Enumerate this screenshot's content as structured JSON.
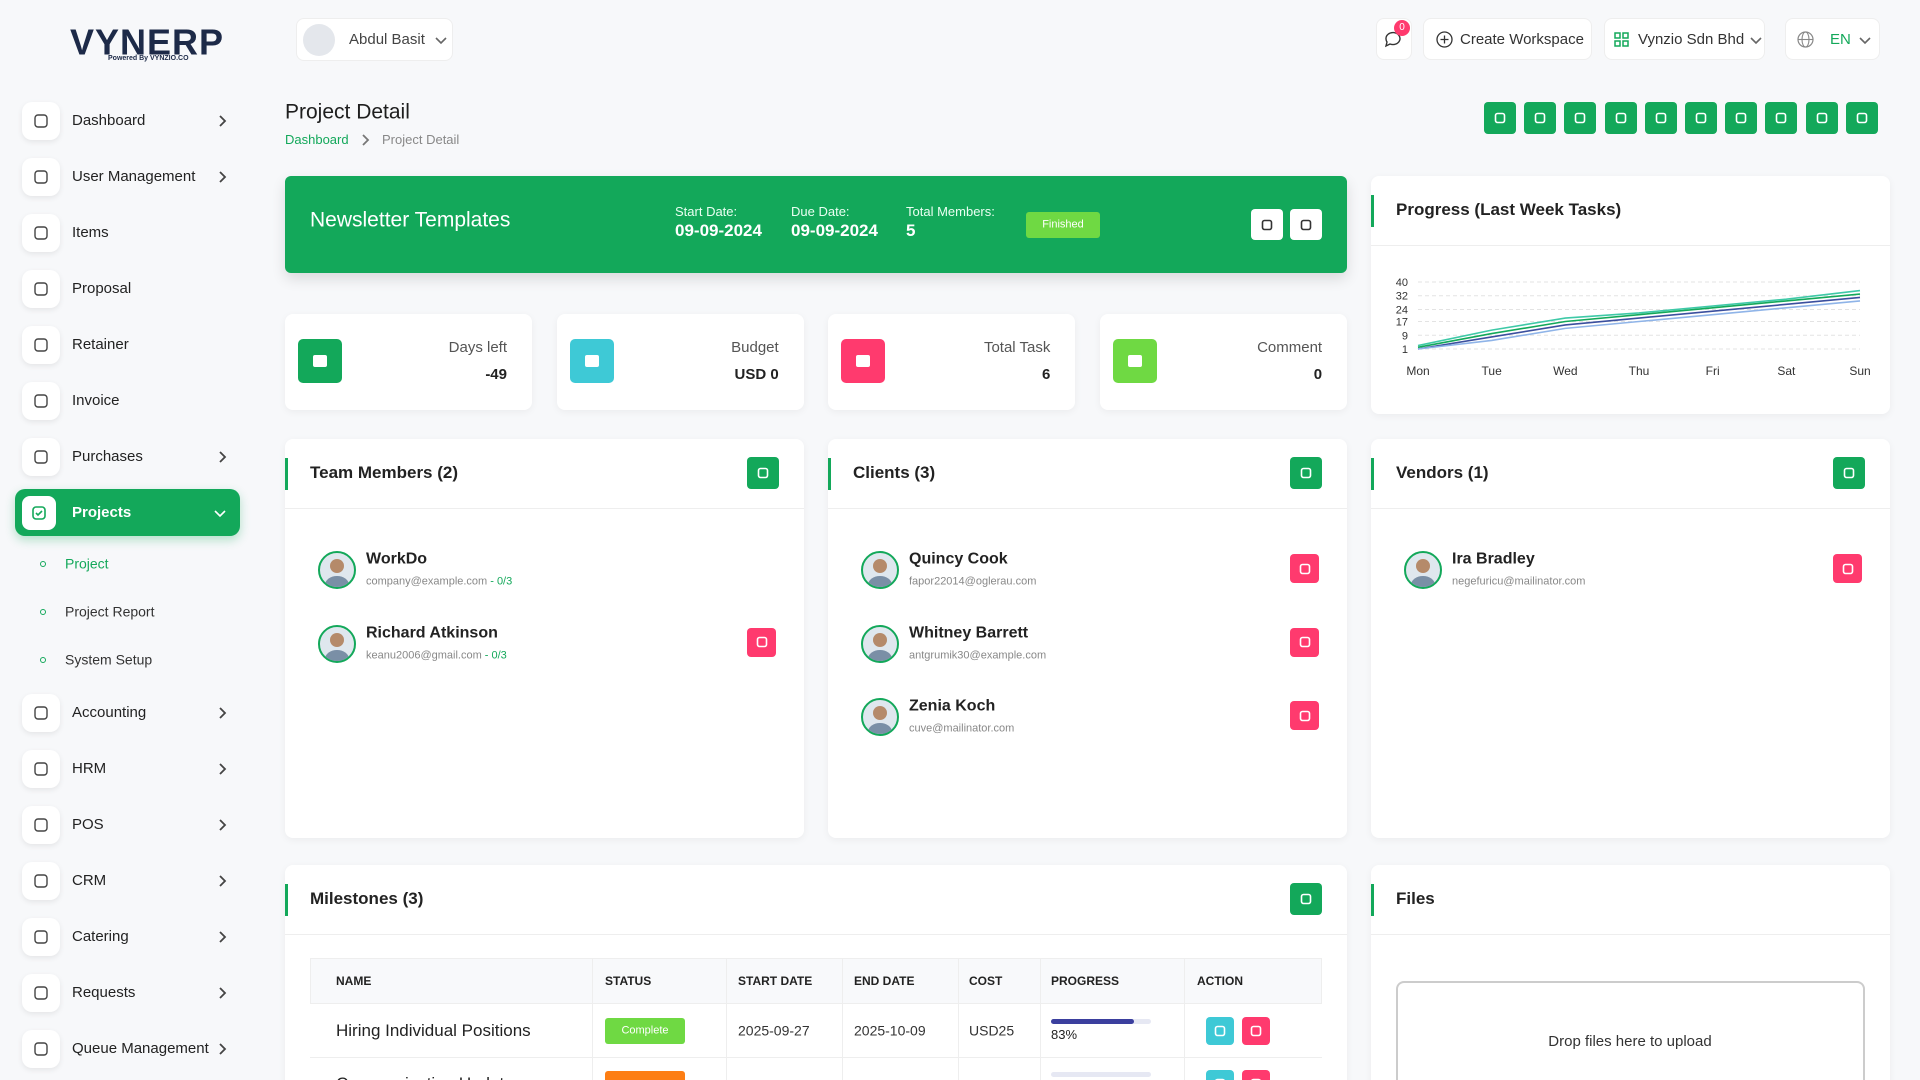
{
  "brand": {
    "logo": "VYNERP",
    "tagline": "Powered By VYNZIO.CO"
  },
  "header": {
    "user": "Abdul Basit",
    "notifications": 0,
    "create_workspace": "Create Workspace",
    "company": "Vynzio Sdn Bhd",
    "language": "EN"
  },
  "sidebar": {
    "items": [
      {
        "label": "Dashboard",
        "expandable": true
      },
      {
        "label": "User Management",
        "expandable": true
      },
      {
        "label": "Items",
        "expandable": false
      },
      {
        "label": "Proposal",
        "expandable": false
      },
      {
        "label": "Retainer",
        "expandable": false
      },
      {
        "label": "Invoice",
        "expandable": false
      },
      {
        "label": "Purchases",
        "expandable": true
      },
      {
        "label": "Projects",
        "expandable": true,
        "active": true,
        "children": [
          "Project",
          "Project Report",
          "System Setup"
        ]
      },
      {
        "label": "Accounting",
        "expandable": true
      },
      {
        "label": "HRM",
        "expandable": true
      },
      {
        "label": "POS",
        "expandable": true
      },
      {
        "label": "CRM",
        "expandable": true
      },
      {
        "label": "Catering",
        "expandable": true
      },
      {
        "label": "Requests",
        "expandable": true
      },
      {
        "label": "Queue Management",
        "expandable": true
      }
    ]
  },
  "page": {
    "title": "Project Detail",
    "breadcrumb": [
      "Dashboard",
      "Project Detail"
    ]
  },
  "project": {
    "name": "Newsletter Templates",
    "start_label": "Start Date:",
    "start_date": "09-09-2024",
    "due_label": "Due Date:",
    "due_date": "09-09-2024",
    "members_label": "Total Members:",
    "members": 5,
    "status": "Finished"
  },
  "stats": [
    {
      "label": "Days left",
      "value": -49,
      "color": "#13a85a"
    },
    {
      "label": "Budget",
      "value": "USD 0",
      "color": "#3ec9d6"
    },
    {
      "label": "Total Task",
      "value": 6,
      "color": "#ff3a6e"
    },
    {
      "label": "Comment",
      "value": 0,
      "color": "#6fd943"
    }
  ],
  "progress_chart": {
    "type": "line",
    "title": "Progress (Last Week Tasks)",
    "categories": [
      "Mon",
      "Tue",
      "Wed",
      "Thu",
      "Fri",
      "Sat",
      "Sun"
    ],
    "ylim": [
      1,
      40
    ],
    "yticks": [
      1,
      9,
      17,
      24,
      32,
      40
    ],
    "grid": true,
    "series": [
      {
        "color": "#3ec9a7",
        "values": [
          3,
          12,
          19,
          22,
          26,
          30,
          35
        ]
      },
      {
        "color": "#13a85a",
        "values": [
          2,
          10,
          17,
          21,
          25,
          29,
          33
        ]
      },
      {
        "color": "#3b4f9e",
        "values": [
          1,
          8,
          15,
          19,
          23,
          27,
          31
        ]
      },
      {
        "color": "#8fb4e8",
        "values": [
          1,
          6,
          13,
          17,
          21,
          25,
          29
        ]
      }
    ]
  },
  "team": {
    "title": "Team Members (2)",
    "members": [
      {
        "name": "WorkDo",
        "email": "company@example.com",
        "tasks": "- 0/3"
      },
      {
        "name": "Richard Atkinson",
        "email": "keanu2006@gmail.com",
        "tasks": "- 0/3"
      }
    ]
  },
  "clients": {
    "title": "Clients (3)",
    "members": [
      {
        "name": "Quincy Cook",
        "email": "fapor22014@oglerau.com"
      },
      {
        "name": "Whitney Barrett",
        "email": "antgrumik30@example.com"
      },
      {
        "name": "Zenia Koch",
        "email": "cuve@mailinator.com"
      }
    ]
  },
  "vendors": {
    "title": "Vendors (1)",
    "members": [
      {
        "name": "Ira Bradley",
        "email": "negefuricu@mailinator.com"
      }
    ]
  },
  "milestones": {
    "title": "Milestones (3)",
    "columns": [
      "NAME",
      "STATUS",
      "START DATE",
      "END DATE",
      "COST",
      "PROGRESS",
      "ACTION"
    ],
    "rows": [
      {
        "name": "Hiring Individual Positions",
        "status": "Complete",
        "start": "2025-09-27",
        "end": "2025-10-09",
        "cost": "USD25",
        "progress": {
          "value": 83,
          "label": "83%"
        }
      },
      {
        "name": "Communication Updates"
      }
    ]
  },
  "files": {
    "title": "Files",
    "dropzone": "Drop files here to upload"
  }
}
